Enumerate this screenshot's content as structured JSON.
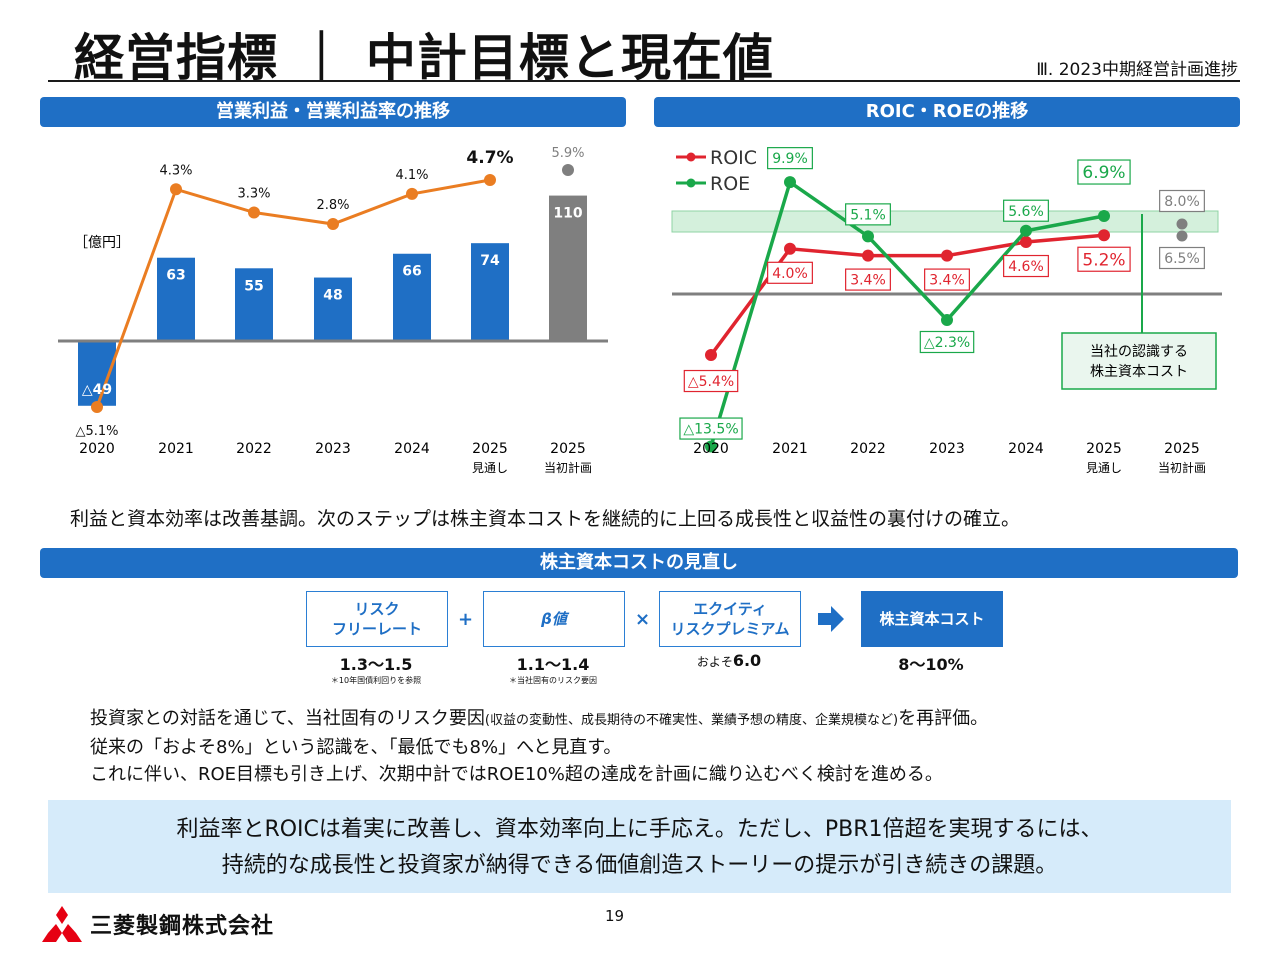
{
  "header": {
    "title": "経営指標 ｜ 中計目標と現在値",
    "section": "Ⅲ. 2023中期経営計画進捗"
  },
  "left_panel": {
    "heading": "営業利益・営業利益率の推移",
    "unit": "［億円］"
  },
  "right_panel": {
    "heading": "ROIC・ROEの推移",
    "cost_box": [
      "当社の認識する",
      "株主資本コスト"
    ]
  },
  "chart_data": [
    {
      "type": "bar",
      "title": "営業利益・営業利益率の推移",
      "unit": "［億円］",
      "categories": [
        "2020",
        "2021",
        "2022",
        "2023",
        "2024",
        "2025\n見通し",
        "2025\n当初計画"
      ],
      "series": [
        {
          "values": [
            -49,
            63,
            55,
            48,
            66,
            74,
            110
          ],
          "labels": [
            "△49",
            "63",
            "55",
            "48",
            "66",
            "74",
            "110"
          ]
        },
        {
          "type": "line",
          "values": [
            -5.1,
            4.3,
            3.3,
            2.8,
            4.1,
            4.7,
            5.9
          ],
          "labels": [
            "△5.1%",
            "4.3%",
            "3.3%",
            "2.8%",
            "4.1%",
            "4.7%",
            "5.9%"
          ]
        }
      ],
      "colors": {
        "bar": "#1f6fc5",
        "bar_plan": "#7f7f7f",
        "line": "#ea7d22"
      }
    },
    {
      "type": "line",
      "title": "ROIC・ROEの推移",
      "categories": [
        "2020",
        "2021",
        "2022",
        "2023",
        "2024",
        "2025\n見通し",
        "2025\n当初計画"
      ],
      "series": [
        {
          "name": "ROIC",
          "values": [
            -5.4,
            4.0,
            3.4,
            3.4,
            4.6,
            5.2,
            6.5
          ],
          "labels": [
            "△5.4%",
            "4.0%",
            "3.4%",
            "3.4%",
            "4.6%",
            "5.2%",
            "6.5%"
          ]
        },
        {
          "name": "ROE",
          "values": [
            -13.5,
            9.9,
            5.1,
            -2.3,
            5.6,
            6.9,
            8.0
          ],
          "labels": [
            "△13.5%",
            "9.9%",
            "5.1%",
            "△2.3%",
            "5.6%",
            "6.9%",
            "8.0%"
          ]
        }
      ],
      "colors": {
        "ROIC": "#e0242f",
        "ROE": "#1aa84a",
        "plan": "#7f7f7f",
        "cost_band": "#d4f0dc"
      }
    }
  ],
  "summary": "利益と資本効率は改善基調。次のステップは株主資本コストを継続的に上回る成長性と収益性の裏付けの確立。",
  "cost_review": {
    "heading": "株主資本コストの見直し",
    "boxes": [
      {
        "label1": "リスク",
        "label2": "フリーレート",
        "value": "1.3～1.5",
        "note": "＊10年国債利回りを参照"
      },
      {
        "label1": "β値",
        "label2": "",
        "value": "1.1～1.4",
        "note": "＊当社固有のリスク要因"
      },
      {
        "label1": "エクイティ",
        "label2": "リスクプレミアム",
        "value_prefix": "およそ",
        "value": "6.0",
        "note": ""
      },
      {
        "label1": "株主資本コスト",
        "label2": "",
        "value": "8～10%",
        "note": ""
      }
    ],
    "ops": [
      "+",
      "×"
    ]
  },
  "paragraph": {
    "line1a": "投資家との対話を通じて、当社固有のリスク要因",
    "line1b": "(収益の変動性、成長期待の不確実性、業績予想の精度、企業規模など)",
    "line1c": "を再評価。",
    "line2": "従来の「およそ8%」という認識を、「最低でも8%」へと見直す。",
    "line3": "これに伴い、ROE目標も引き上げ、次期中計ではROE10%超の達成を計画に織り込むべく検討を進める。"
  },
  "conclusion": {
    "line1": "利益率とROICは着実に改善し、資本効率向上に手応え。ただし、PBR1倍超を実現するには、",
    "line2": "持続的な成長性と投資家が納得できる価値創造ストーリーの提示が引き続きの課題。"
  },
  "footer": {
    "page": "19",
    "company": "三菱製鋼株式会社"
  }
}
